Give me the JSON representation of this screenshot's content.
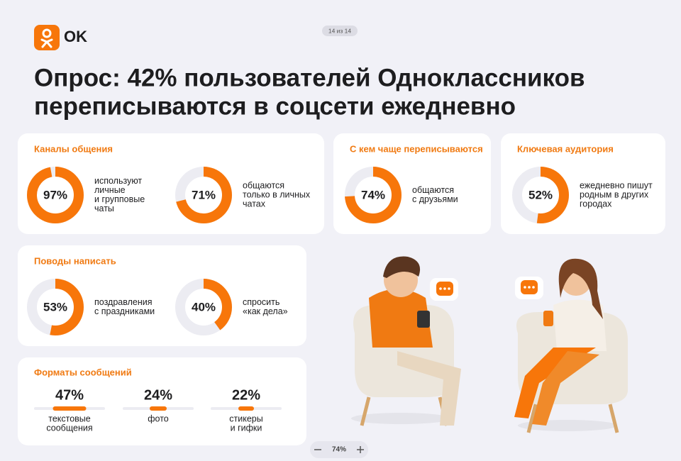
{
  "header": {
    "logo": "OK",
    "page": "14 из 14",
    "title": [
      "Опрос: 42% пользователей Одноклассников",
      "переписываются в соцсети ежедневно"
    ]
  },
  "cards": [
    {
      "title": "Каналы общения",
      "items": [
        {
          "value": 97,
          "label": "97%",
          "text": [
            "используют",
            "личные",
            "и групповые",
            "чаты"
          ]
        },
        {
          "value": 71,
          "label": "71%",
          "text": [
            "общаются",
            "только в личных",
            "чатах"
          ]
        }
      ]
    },
    {
      "title": "С кем чаще переписываются",
      "items": [
        {
          "value": 74,
          "label": "74%",
          "text": [
            "общаются",
            "с друзьями"
          ]
        }
      ]
    },
    {
      "title": "Ключевая аудитория",
      "items": [
        {
          "value": 52,
          "label": "52%",
          "text": [
            "ежедневно пишут",
            "родным в других",
            "городах"
          ]
        }
      ]
    },
    {
      "title": "Поводы написать",
      "items": [
        {
          "value": 53,
          "label": "53%",
          "text": [
            "поздравления",
            "с праздниками"
          ]
        },
        {
          "value": 40,
          "label": "40%",
          "text": [
            "спросить",
            "«как дела»"
          ]
        }
      ]
    }
  ],
  "formats": {
    "title": "Форматы сообщений",
    "items": [
      {
        "value": 47,
        "label": "47%",
        "text": [
          "текстовые",
          "сообщения"
        ]
      },
      {
        "value": 24,
        "label": "24%",
        "text": [
          "фото"
        ]
      },
      {
        "value": 22,
        "label": "22%",
        "text": [
          "стикеры",
          "и гифки"
        ]
      }
    ]
  },
  "zoom": {
    "value": "74%"
  }
}
